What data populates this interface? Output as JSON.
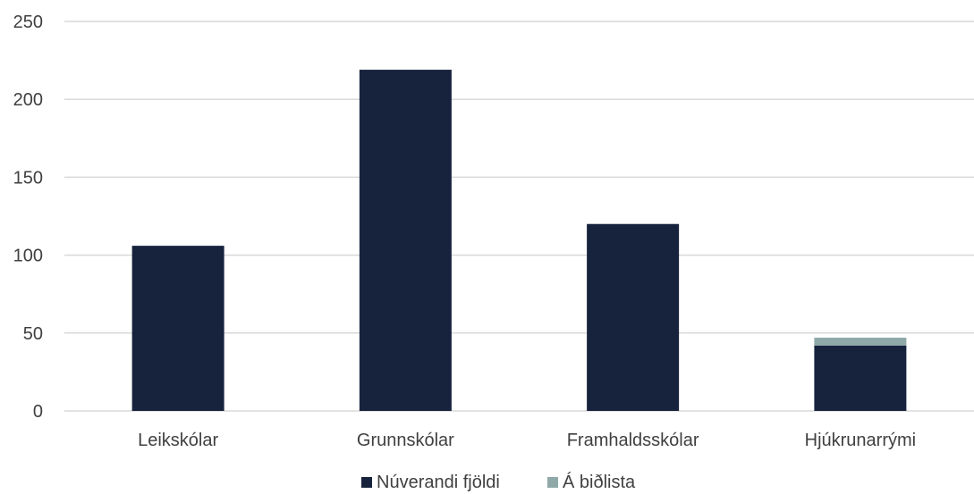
{
  "chart_data": {
    "type": "bar",
    "stacked": true,
    "categories": [
      "Leikskólar",
      "Grunnskólar",
      "Framhaldsskólar",
      "Hjúkrunarrými"
    ],
    "series": [
      {
        "name": "Núverandi fjöldi",
        "color": "#17233d",
        "values": [
          106,
          219,
          120,
          42
        ]
      },
      {
        "name": "Á biðlista",
        "color": "#8fa8a8",
        "values": [
          0,
          0,
          0,
          5
        ]
      }
    ],
    "yticks": [
      "0",
      "50",
      "100",
      "150",
      "200",
      "250"
    ],
    "ylim": [
      0,
      250
    ],
    "grid": true,
    "legend_position": "bottom"
  }
}
